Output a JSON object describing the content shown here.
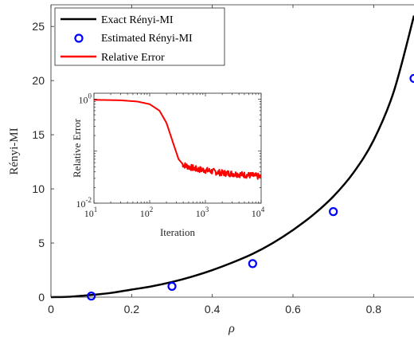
{
  "chart_data": [
    {
      "type": "line",
      "xlabel": "ρ",
      "ylabel": "Rényi-MI",
      "xlim": [
        0,
        0.9
      ],
      "ylim": [
        0,
        27
      ],
      "xticks": [
        0,
        0.2,
        0.4,
        0.6,
        0.8
      ],
      "xtick_labels": [
        "0",
        "0.2",
        "0.4",
        "0.6",
        "0.8"
      ],
      "yticks": [
        0,
        5,
        10,
        15,
        20,
        25
      ],
      "ytick_labels": [
        "0",
        "5",
        "10",
        "15",
        "20",
        "25"
      ],
      "grid": false,
      "legend_position": "top-left",
      "legend": [
        {
          "label": "Exact Rényi-MI",
          "kind": "line",
          "color": "#000000"
        },
        {
          "label": "Estimated Rényi-MI",
          "kind": "marker",
          "color": "#0000ff"
        },
        {
          "label": "Relative Error",
          "kind": "line",
          "color": "#ff0000"
        }
      ],
      "series": [
        {
          "name": "Exact Rényi-MI",
          "kind": "line",
          "color": "#000000",
          "x": [
            0,
            0.05,
            0.1,
            0.15,
            0.2,
            0.25,
            0.3,
            0.35,
            0.4,
            0.45,
            0.5,
            0.55,
            0.6,
            0.65,
            0.7,
            0.75,
            0.8,
            0.85,
            0.9
          ],
          "y": [
            0,
            0.05,
            0.2,
            0.4,
            0.7,
            1.0,
            1.4,
            1.9,
            2.5,
            3.2,
            4.0,
            5.0,
            6.2,
            7.6,
            9.3,
            11.5,
            14.5,
            19.0,
            26.0
          ]
        },
        {
          "name": "Estimated Rényi-MI",
          "kind": "scatter",
          "color": "#0000ff",
          "x": [
            0.1,
            0.3,
            0.5,
            0.7,
            0.9
          ],
          "y": [
            0.1,
            1.0,
            3.1,
            7.9,
            20.2
          ]
        }
      ]
    },
    {
      "type": "line",
      "inset": true,
      "xlabel": "Iteration",
      "ylabel": "Relative Error",
      "xscale": "log",
      "yscale": "log",
      "xlim": [
        10,
        10000
      ],
      "ylim": [
        0.01,
        1.3
      ],
      "xticks": [
        10,
        100,
        1000,
        10000
      ],
      "xtick_labels": [
        {
          "base": "10",
          "exp": "1"
        },
        {
          "base": "10",
          "exp": "2"
        },
        {
          "base": "10",
          "exp": "3"
        },
        {
          "base": "10",
          "exp": "4"
        }
      ],
      "yticks": [
        0.01,
        1
      ],
      "ytick_labels": [
        {
          "base": "10",
          "exp": "-2"
        },
        {
          "base": "10",
          "exp": "0"
        }
      ],
      "series": [
        {
          "name": "Relative Error",
          "kind": "line",
          "color": "#ff0000",
          "x": [
            10,
            30,
            60,
            100,
            150,
            200,
            260,
            330,
            400,
            500,
            700,
            1000,
            1500,
            2000,
            3000,
            5000,
            7000,
            10000
          ],
          "y": [
            0.97,
            0.95,
            0.9,
            0.8,
            0.6,
            0.35,
            0.15,
            0.07,
            0.055,
            0.05,
            0.045,
            0.043,
            0.04,
            0.038,
            0.037,
            0.035,
            0.034,
            0.032
          ]
        }
      ]
    }
  ]
}
